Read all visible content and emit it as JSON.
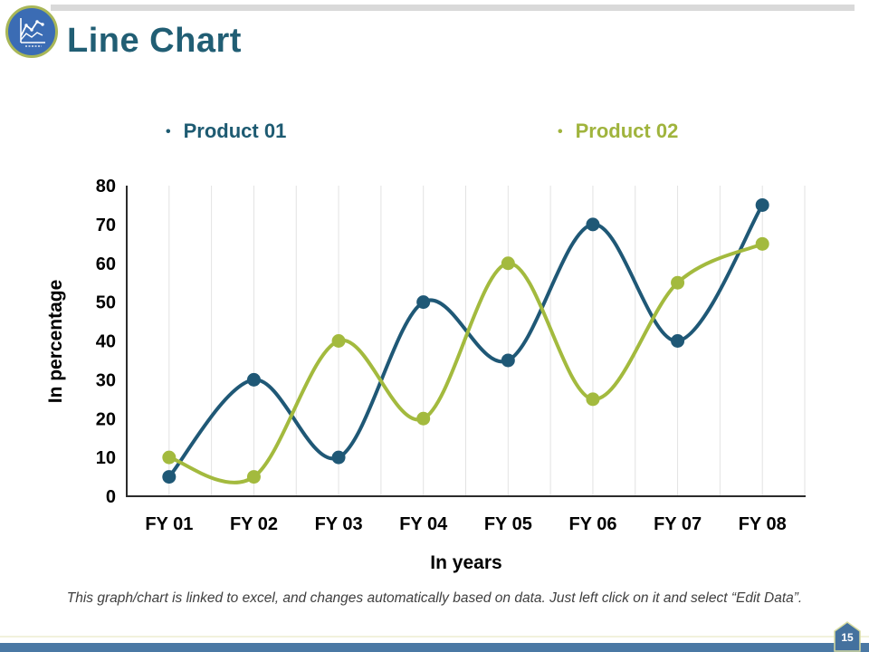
{
  "slide": {
    "title": "Line Chart",
    "page_number": "15",
    "footer_note": "This graph/chart is linked to excel, and changes automatically based on data. Just left click on it and select “Edit Data”."
  },
  "legend": {
    "bullet": "•",
    "items": [
      {
        "label": "Product 01",
        "color": "#1e5b72"
      },
      {
        "label": "Product 02",
        "color": "#a0b43d"
      }
    ]
  },
  "chart_data": {
    "type": "line",
    "title": "",
    "categories": [
      "FY 01",
      "FY 02",
      "FY 03",
      "FY 04",
      "FY 05",
      "FY 06",
      "FY 07",
      "FY 08"
    ],
    "series": [
      {
        "name": "Product 01",
        "color": "#1f5876",
        "values": [
          5,
          30,
          10,
          50,
          35,
          70,
          40,
          75
        ]
      },
      {
        "name": "Product 02",
        "color": "#a3ba3e",
        "values": [
          10,
          5,
          40,
          20,
          60,
          25,
          55,
          65
        ]
      }
    ],
    "xlabel": "In years",
    "ylabel": "In percentage",
    "ylim": [
      0,
      80
    ],
    "y_ticks": [
      0,
      10,
      20,
      30,
      40,
      50,
      60,
      70,
      80
    ],
    "grid": "vertical",
    "smooth": true,
    "markers": true,
    "legend_position": "top"
  },
  "colors": {
    "title_text": "#215e74",
    "axis": "#2b2b2b",
    "gridline": "#e2e2e2",
    "tick_text": "#000000",
    "top_strip": "#d9d9d9",
    "bottom_bar": "#4a78a4",
    "badge_fill": "#44719e",
    "badge_border": "#d8dca0",
    "icon_ring": "#a9b757",
    "icon_fill": "#3b6cb4"
  }
}
